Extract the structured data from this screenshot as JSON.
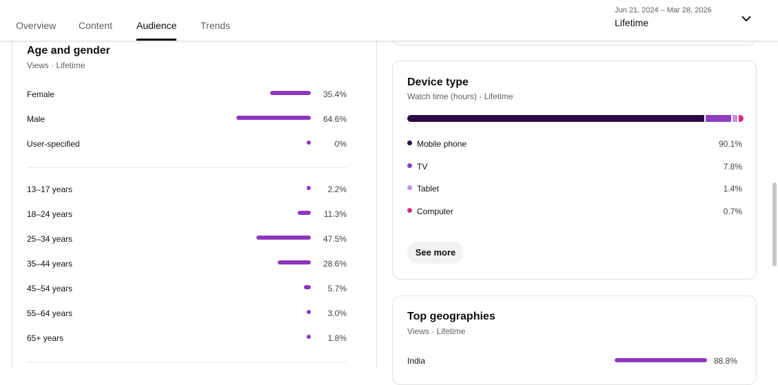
{
  "tabs": [
    "Overview",
    "Content",
    "Audience",
    "Trends"
  ],
  "active_tab": 2,
  "date_range": {
    "dates": "Jun 21, 2024 – Mar 28, 2026",
    "period": "Lifetime"
  },
  "age_gender": {
    "title": "Age and gender",
    "subtitle": "Views · Lifetime",
    "color": "#8e35c0",
    "gender": [
      {
        "label": "Female",
        "value": 35.4,
        "value_label": "35.4%"
      },
      {
        "label": "Male",
        "value": 64.6,
        "value_label": "64.6%"
      },
      {
        "label": "User-specified",
        "value": 0,
        "value_label": "0%"
      }
    ],
    "age": [
      {
        "label": "13–17 years",
        "value": 2.2,
        "value_label": "2.2%"
      },
      {
        "label": "18–24 years",
        "value": 11.3,
        "value_label": "11.3%"
      },
      {
        "label": "25–34 years",
        "value": 47.5,
        "value_label": "47.5%"
      },
      {
        "label": "35–44 years",
        "value": 28.6,
        "value_label": "28.6%"
      },
      {
        "label": "45–54 years",
        "value": 5.7,
        "value_label": "5.7%"
      },
      {
        "label": "55–64 years",
        "value": 3.0,
        "value_label": "3.0%"
      },
      {
        "label": "65+ years",
        "value": 1.8,
        "value_label": "1.8%"
      }
    ]
  },
  "device": {
    "title": "Device type",
    "subtitle": "Watch time (hours) · Lifetime",
    "items": [
      {
        "label": "Mobile phone",
        "value": 90.1,
        "value_label": "90.1%",
        "color": "#2b0b47"
      },
      {
        "label": "TV",
        "value": 7.8,
        "value_label": "7.8%",
        "color": "#8e3ec0"
      },
      {
        "label": "Tablet",
        "value": 1.4,
        "value_label": "1.4%",
        "color": "#c88ee8"
      },
      {
        "label": "Computer",
        "value": 0.7,
        "value_label": "0.7%",
        "color": "#d0337c"
      }
    ],
    "button": "See more"
  },
  "geographies": {
    "title": "Top geographies",
    "subtitle": "Views · Lifetime",
    "color": "#8e35c0",
    "items": [
      {
        "label": "India",
        "value": 88.8,
        "value_label": "88.8%"
      }
    ]
  }
}
